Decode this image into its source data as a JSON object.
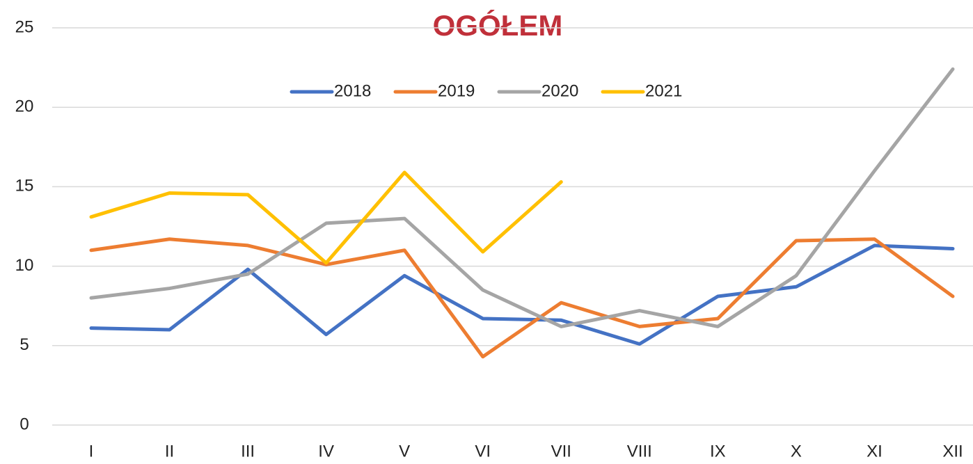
{
  "chart_data": {
    "type": "line",
    "title": "OGÓŁEM",
    "categories": [
      "I",
      "II",
      "III",
      "IV",
      "V",
      "VI",
      "VII",
      "VIII",
      "IX",
      "X",
      "XI",
      "XII"
    ],
    "series": [
      {
        "name": "2018",
        "color": "#4472c4",
        "values": [
          6.1,
          6.0,
          9.8,
          5.7,
          9.4,
          6.7,
          6.6,
          5.1,
          8.1,
          8.7,
          11.3,
          11.1
        ]
      },
      {
        "name": "2019",
        "color": "#ed7d31",
        "values": [
          11.0,
          11.7,
          11.3,
          10.1,
          11.0,
          4.3,
          7.7,
          6.2,
          6.7,
          11.6,
          11.7,
          8.1
        ]
      },
      {
        "name": "2020",
        "color": "#a5a5a5",
        "values": [
          8.0,
          8.6,
          9.5,
          12.7,
          13.0,
          8.5,
          6.2,
          7.2,
          6.2,
          9.4,
          16.0,
          22.4
        ]
      },
      {
        "name": "2021",
        "color": "#ffc000",
        "values": [
          13.1,
          14.6,
          14.5,
          10.2,
          15.9,
          10.9,
          15.3,
          null,
          null,
          null,
          null,
          null
        ]
      }
    ],
    "ylim": [
      0,
      25
    ],
    "yticks": [
      0,
      5,
      10,
      15,
      20,
      25
    ],
    "grid": true,
    "legend": "top"
  }
}
